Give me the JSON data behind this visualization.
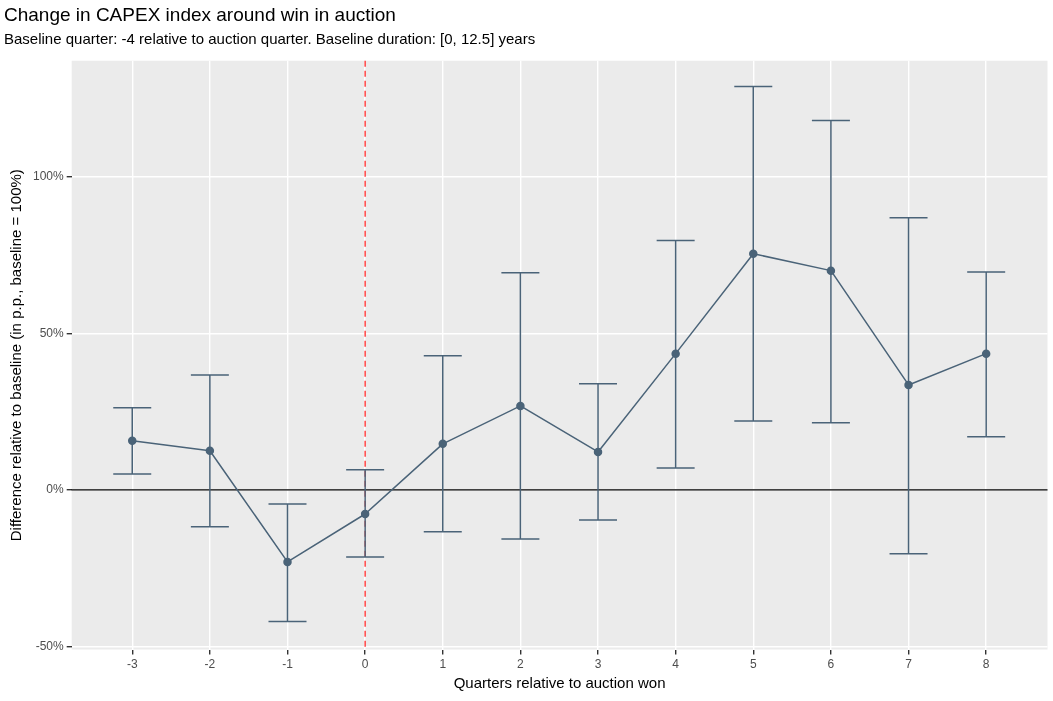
{
  "chart_data": {
    "type": "line",
    "title": "Change in CAPEX index around win in auction",
    "subtitle": "Baseline quarter: -4 relative to auction quarter. Baseline duration: [0, 12.5] years",
    "xlabel": "Quarters relative to auction won",
    "ylabel": "Difference relative to baseline (in p.p., baseline = 100%)",
    "x": [
      -3,
      -2,
      -1,
      0,
      1,
      2,
      3,
      4,
      5,
      6,
      7,
      8
    ],
    "series": [
      {
        "color": "#4a6378",
        "values": [
          15.7,
          12.5,
          -23,
          -7.7,
          14.7,
          26.8,
          12.1,
          43.5,
          75.4,
          70,
          33.5,
          43.5
        ],
        "errors": [
          [
            5.1,
            26.2
          ],
          [
            -11.8,
            36.7
          ],
          [
            -42,
            -4.5
          ],
          [
            -21.4,
            6.4
          ],
          [
            -13.4,
            42.8
          ],
          [
            -15.7,
            69.3
          ],
          [
            -9.6,
            33.9
          ],
          [
            7,
            79.6
          ],
          [
            22,
            128.8
          ],
          [
            21.4,
            117.9
          ],
          [
            -20.4,
            86.9
          ],
          [
            17,
            69.6
          ]
        ]
      }
    ],
    "xlim": [
      -3.78,
      8.79
    ],
    "ylim": [
      -51,
      137
    ],
    "xticks": [
      -3,
      -2,
      -1,
      0,
      1,
      2,
      3,
      4,
      5,
      6,
      7,
      8
    ],
    "yticks": [
      {
        "value": -50,
        "label": "-50%"
      },
      {
        "value": 0,
        "label": "0%"
      },
      {
        "value": 50,
        "label": "50%"
      },
      {
        "value": 100,
        "label": "100%"
      }
    ],
    "ref_lines": [
      {
        "axis": "y",
        "value": 0,
        "color": "#000000",
        "line_style": "solid"
      },
      {
        "axis": "x",
        "value": 0,
        "color": "#ff2a2a",
        "line_style": "dashed"
      }
    ],
    "grid": true,
    "legend": false,
    "marker": "circle",
    "line_style": "solid"
  }
}
